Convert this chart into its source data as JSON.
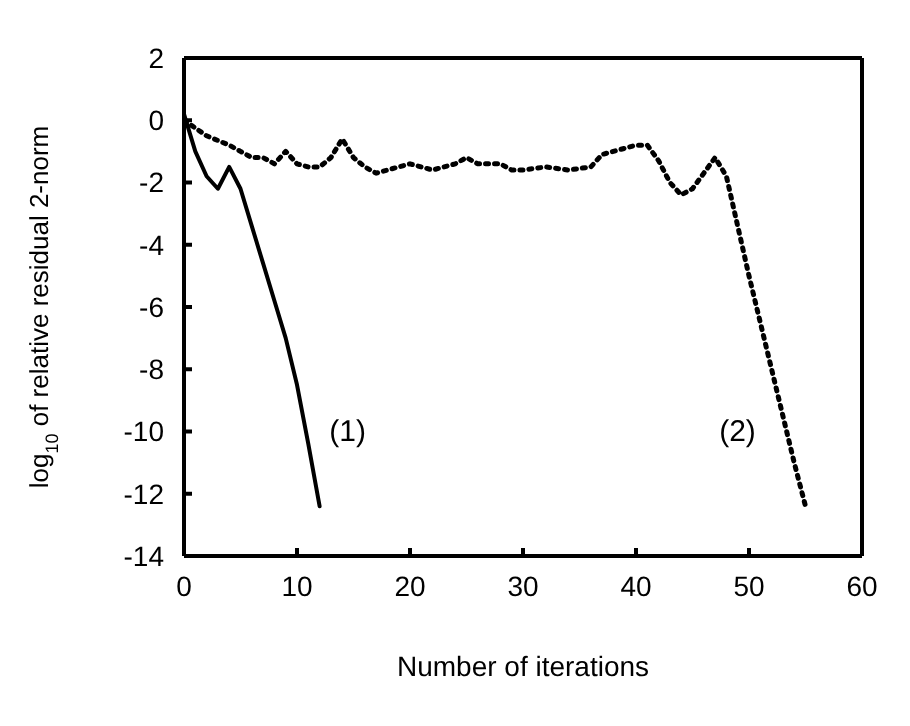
{
  "chart_data": {
    "type": "line",
    "xlabel": "Number of iterations",
    "ylabel": "log$_{10}$ of relative residual 2-norm",
    "xlim": [
      0,
      60
    ],
    "xticks": [
      0,
      10,
      20,
      30,
      40,
      50,
      60
    ],
    "ylim": [
      -14,
      2
    ],
    "yticks": [
      2,
      0,
      -2,
      -4,
      -6,
      -8,
      -10,
      -12,
      -14
    ],
    "marker": "none",
    "series": [
      {
        "color": "#000000",
        "line_style": "solid",
        "x": [
          0,
          1,
          2,
          3,
          4,
          5,
          6,
          7,
          8,
          9,
          10,
          11,
          12
        ],
        "values": [
          0.2,
          -1,
          -1.8,
          -2.2,
          -1.5,
          -2.2,
          -3.4,
          -4.6,
          -5.8,
          -7,
          -8.5,
          -10.4,
          -12.4
        ]
      },
      {
        "color": "#000000",
        "line_style": "dotted",
        "x": [
          0,
          2,
          4,
          5,
          6,
          7,
          8,
          9,
          10,
          11,
          12,
          13,
          14,
          15,
          16,
          17,
          18,
          20,
          22,
          24,
          25,
          26,
          28,
          29,
          30,
          32,
          34,
          36,
          37,
          39,
          40,
          41,
          42,
          43,
          44,
          45,
          46,
          47,
          48,
          50,
          52,
          54,
          55
        ],
        "values": [
          0,
          -0.5,
          -0.8,
          -1,
          -1.2,
          -1.2,
          -1.4,
          -1,
          -1.4,
          -1.5,
          -1.5,
          -1.2,
          -0.6,
          -1.2,
          -1.5,
          -1.7,
          -1.6,
          -1.4,
          -1.6,
          -1.4,
          -1.2,
          -1.4,
          -1.4,
          -1.6,
          -1.6,
          -1.5,
          -1.6,
          -1.5,
          -1.1,
          -0.9,
          -0.8,
          -0.8,
          -1.3,
          -2,
          -2.4,
          -2.2,
          -1.7,
          -1.2,
          -1.8,
          -5,
          -8,
          -11,
          -12.4
        ]
      }
    ],
    "annotations": [
      "(1)",
      "(2)"
    ]
  }
}
